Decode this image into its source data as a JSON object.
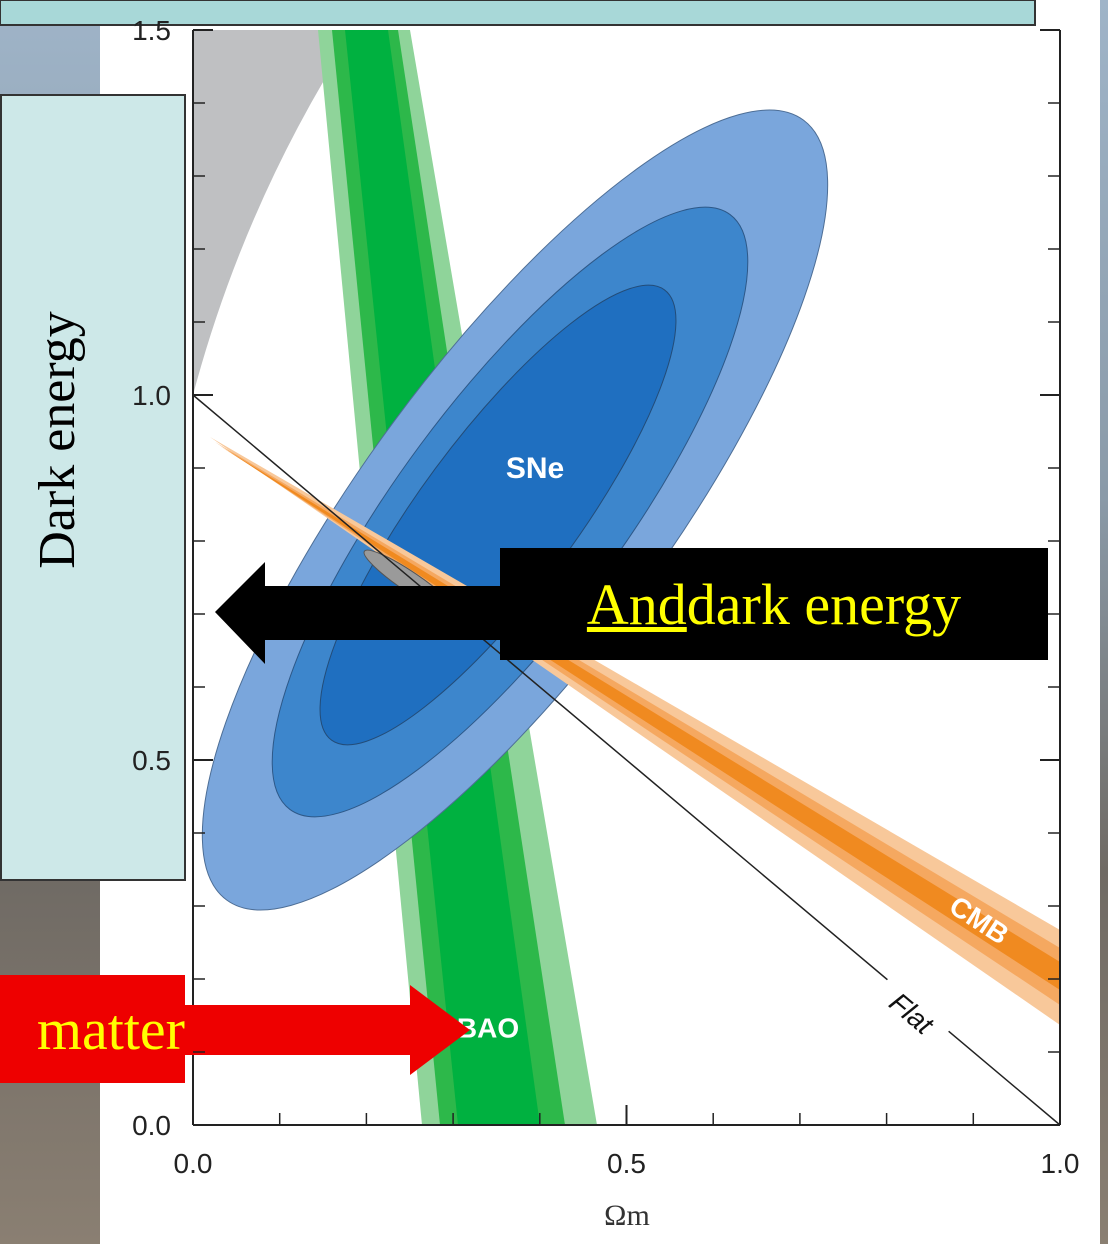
{
  "chart_data": {
    "type": "contour",
    "xlabel": "Ωm",
    "ylabel": "Dark energy",
    "xlim": [
      0,
      1
    ],
    "ylim": [
      0,
      1.5
    ],
    "xticks": [
      {
        "value": 0,
        "label": "0.0"
      },
      {
        "value": 0.5,
        "label": "0.5"
      },
      {
        "value": 1,
        "label": "1.0"
      }
    ],
    "yticks": [
      {
        "value": 0,
        "label": "0.0"
      },
      {
        "value": 0.5,
        "label": "0.5"
      },
      {
        "value": 1,
        "label": "1.0"
      },
      {
        "value": 1.5,
        "label": "1.5"
      }
    ],
    "xminorticks": [
      0.1,
      0.2,
      0.3,
      0.4,
      0.6,
      0.7,
      0.8,
      0.9
    ],
    "yminorticks": [
      0.1,
      0.2,
      0.3,
      0.4,
      0.6,
      0.7,
      0.8,
      0.9,
      1.1,
      1.2,
      1.3,
      1.4
    ],
    "region_labels": [
      "SNe",
      "BAO",
      "CMB",
      "Flat"
    ],
    "annotations": [
      "And",
      "dark energy",
      "matter"
    ]
  }
}
